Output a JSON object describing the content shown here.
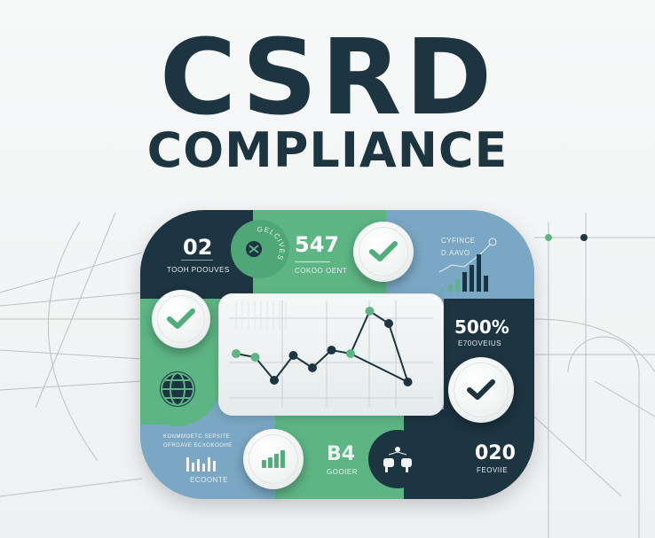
{
  "title": "CSRD",
  "subtitle": "COMPLIANCE",
  "colors": {
    "navy": "#1d3441",
    "green": "#5db584",
    "blue": "#7aa7c4",
    "panel": "#eef2f3"
  },
  "tiles": {
    "top_left": {
      "value": "02",
      "label": "TOOH POOUVES"
    },
    "green_circle": {
      "label": "GELCIVES",
      "icon": "compass-icon"
    },
    "top_middle": {
      "value": "547",
      "label": "COKOO OENT"
    },
    "top_right": {
      "line1": "CYFINCE",
      "line2": "D.AAVO",
      "icon": "bar-chart-trend-icon"
    },
    "right_middle": {
      "value": "500%",
      "label": "E70OVEIUS"
    },
    "bottom_left": {
      "line1": "KONMMOETC SEPSITE",
      "line2": "OFROAVE ECXOKOOHE",
      "label": "ECOONTE",
      "icon": "bar-chart-icon"
    },
    "bottom_middle": {
      "value": "B4",
      "label": "GOOIER",
      "icon": "bar-chart-icon"
    },
    "bottom_right": {
      "value": "020",
      "label": "FEOVIIE",
      "icon": "people-meeting-icon"
    }
  },
  "check_icons": [
    "check-icon",
    "check-icon",
    "check-icon"
  ],
  "chart_data": {
    "type": "line",
    "points": [
      [
        1,
        3.1
      ],
      [
        2,
        2.9
      ],
      [
        3,
        1.6
      ],
      [
        4,
        3.0
      ],
      [
        5,
        2.3
      ],
      [
        6,
        3.3
      ],
      [
        7,
        3.1
      ],
      [
        8,
        5.5
      ],
      [
        9,
        4.8
      ],
      [
        10,
        1.5
      ]
    ],
    "marker_colors": [
      "green",
      "green",
      "navy",
      "navy",
      "navy",
      "navy",
      "green",
      "green",
      "navy",
      "navy"
    ]
  }
}
